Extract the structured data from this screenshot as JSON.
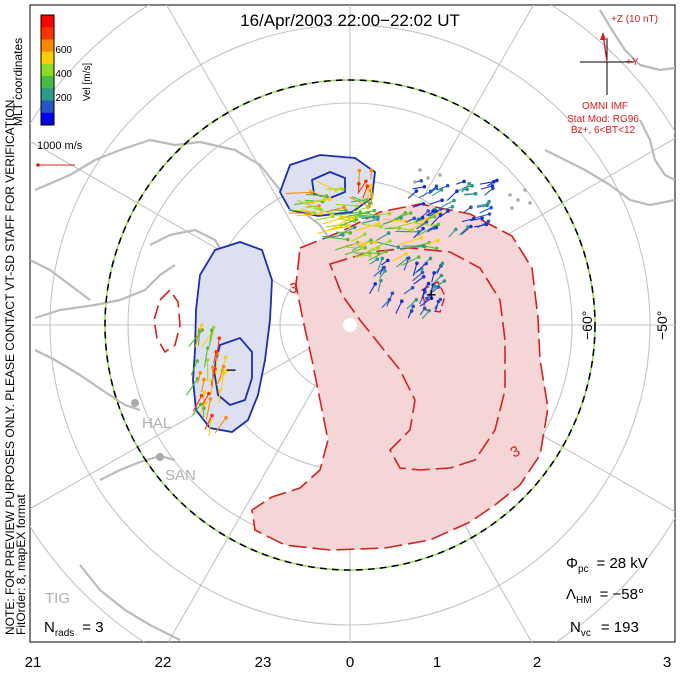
{
  "title": "16/Apr/2003 22:00−22:02 UT",
  "colorbar": {
    "label": "Vel [m/s]",
    "ticks": [
      "600",
      "400",
      "200"
    ],
    "colors": [
      "#0000ee",
      "#2255cc",
      "#2a9a8a",
      "#44bb44",
      "#88dd22",
      "#ffcc00",
      "#ff8800",
      "#ff3300",
      "#ff0000"
    ]
  },
  "coords_label": "MLT coordinates",
  "scale_vector_label": "1000 m/s",
  "side_note": "NOTE: FOR PREVIEW PURPOSES ONLY. PLEASE CONTACT VT-SD STAFF FOR VERIFICATION.",
  "fit_order": "FitOrder: 8, mapEX format",
  "imf": {
    "z_label": "+Z (10 nT)",
    "y_label": "+Y",
    "source": "OMNI IMF",
    "model": "Stat Mod: RG96",
    "model_params": "Bz+, 6<BT<12"
  },
  "latitude_labels": [
    "−60°",
    "−50°"
  ],
  "contour_labels": [
    "3",
    "3"
  ],
  "extrema": {
    "min": "−",
    "max": "+"
  },
  "stations": [
    "HAL",
    "SAN",
    "TIG"
  ],
  "stats": {
    "phi_pc": "Φ",
    "phi_pc_sub": "pc",
    "phi_pc_value": "= 28 kV",
    "lambda_hm": "Λ",
    "lambda_hm_sub": "HM",
    "lambda_hm_value": "= −58°",
    "n_vc": "N",
    "n_vc_sub": "vc",
    "n_vc_value": "= 193",
    "n_rads": "N",
    "n_rads_sub": "rads",
    "n_rads_value": "= 3"
  },
  "mlt_ticks": [
    "21",
    "22",
    "23",
    "0",
    "1",
    "2",
    "3"
  ],
  "colors": {
    "negative": "#1a2fb0",
    "positive": "#d42020",
    "neg_fill": "#dde0f0",
    "pos_fill": "#f5d6d6",
    "coast": "#bbbbbb",
    "grid": "#bfbfbf"
  }
}
